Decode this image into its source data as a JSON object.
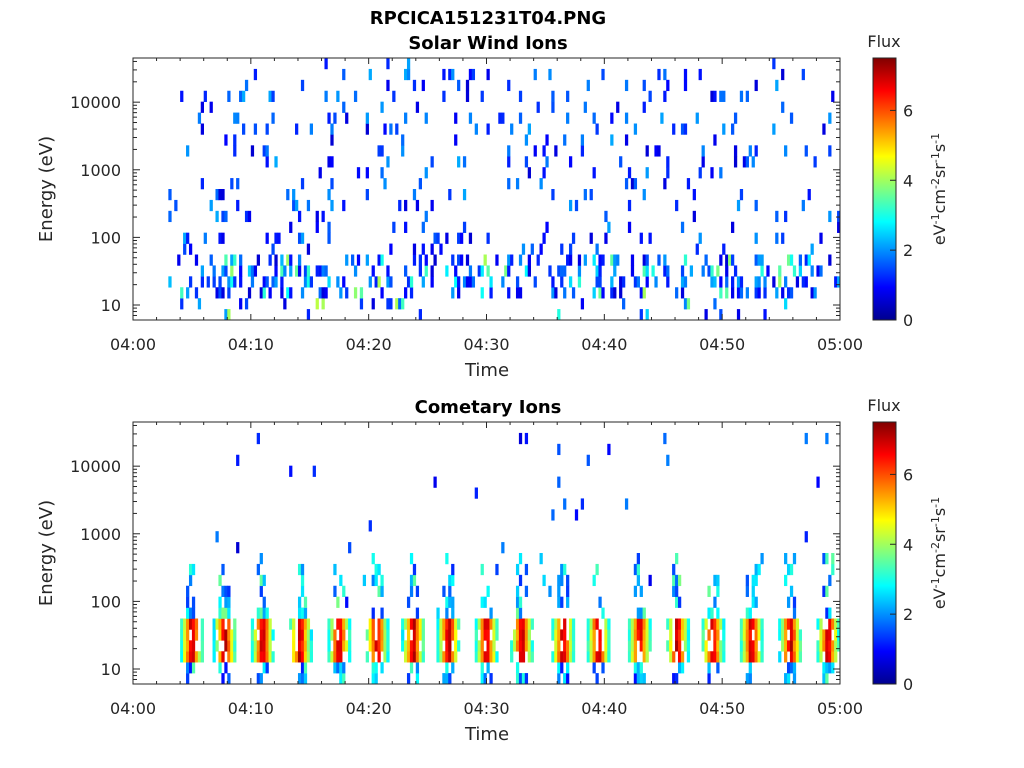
{
  "figure": {
    "title": "RPCICA151231T04.PNG"
  },
  "chart_data": [
    {
      "type": "heatmap",
      "title": "Solar Wind Ions",
      "xlabel": "Time",
      "ylabel": "Energy (eV)",
      "x_ticks": [
        "04:00",
        "04:10",
        "04:20",
        "04:30",
        "04:40",
        "04:50",
        "05:00"
      ],
      "x_range": [
        "04:00",
        "05:00"
      ],
      "y_scale": "log",
      "y_ticks": [
        10,
        100,
        1000,
        10000
      ],
      "y_tick_labels": [
        "10",
        "100",
        "1000",
        "10000"
      ],
      "y_range": [
        6,
        45000
      ],
      "colorbar": {
        "title": "Flux",
        "label": "eV-1cm-2sr-1s-1",
        "range": [
          0,
          7.5
        ],
        "ticks": [
          "0",
          "2",
          "4",
          "6"
        ],
        "colormap": "jet"
      },
      "description_of_values": "Sparse low-flux (0.5-2.5) speckle across 10-30000 eV; denser clusters at 10-40 eV with flux up to ~4"
    },
    {
      "type": "heatmap",
      "title": "Cometary Ions",
      "xlabel": "Time",
      "ylabel": "Energy (eV)",
      "x_ticks": [
        "04:00",
        "04:10",
        "04:20",
        "04:30",
        "04:40",
        "04:50",
        "05:00"
      ],
      "x_range": [
        "04:00",
        "05:00"
      ],
      "y_scale": "log",
      "y_ticks": [
        10,
        100,
        1000,
        10000
      ],
      "y_tick_labels": [
        "10",
        "100",
        "1000",
        "10000"
      ],
      "y_range": [
        6,
        45000
      ],
      "colorbar": {
        "title": "Flux",
        "label": "eV-1cm-2sr-1s-1",
        "range": [
          0,
          7.5
        ],
        "ticks": [
          "0",
          "2",
          "4",
          "6"
        ],
        "colormap": "jet"
      },
      "burst_times_min": [
        5.0,
        7.8,
        11.0,
        14.2,
        17.5,
        20.7,
        23.8,
        26.8,
        30.0,
        33.0,
        36.5,
        39.5,
        43.0,
        46.2,
        49.2,
        52.5,
        55.8,
        59.0
      ],
      "description_of_values": "Periodic bursts (~3 min spacing) of high flux (5-7) at 15-45 eV with tails up to ~500 eV"
    }
  ]
}
